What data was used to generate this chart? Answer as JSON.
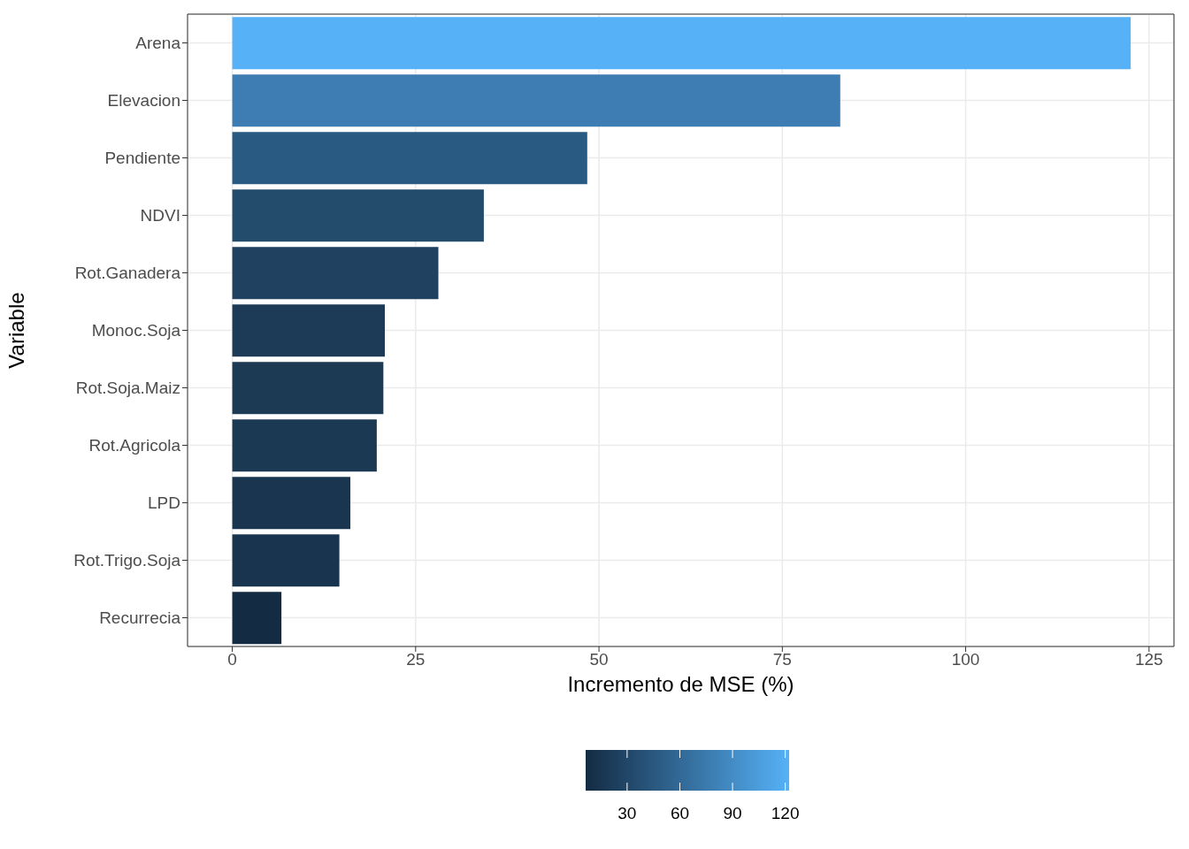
{
  "chart_data": {
    "type": "bar",
    "orientation": "horizontal",
    "xlabel": "Incremento de MSE (%)",
    "ylabel": "Variable",
    "categories": [
      "Arena",
      "Elevacion",
      "Pendiente",
      "NDVI",
      "Rot.Ganadera",
      "Monoc.Soja",
      "Rot.Soja.Maiz",
      "Rot.Agricola",
      "LPD",
      "Rot.Trigo.Soja",
      "Recurrecia"
    ],
    "values": [
      122.5,
      82.9,
      48.4,
      34.3,
      28.1,
      20.8,
      20.6,
      19.7,
      16.1,
      14.6,
      6.7
    ],
    "colors": [
      "#56b1f7",
      "#3e7db4",
      "#285a82",
      "#234b6c",
      "#204260",
      "#1d3a56",
      "#1d3a55",
      "#1c3954",
      "#1a3550",
      "#19344e",
      "#132b43"
    ],
    "xlim": [
      -6.1,
      128.4
    ],
    "xticks": [
      0,
      25,
      50,
      75,
      100,
      125
    ],
    "clim": [
      6.4,
      122.2
    ],
    "cticks": [
      30,
      60,
      90,
      120
    ],
    "grid": true
  }
}
